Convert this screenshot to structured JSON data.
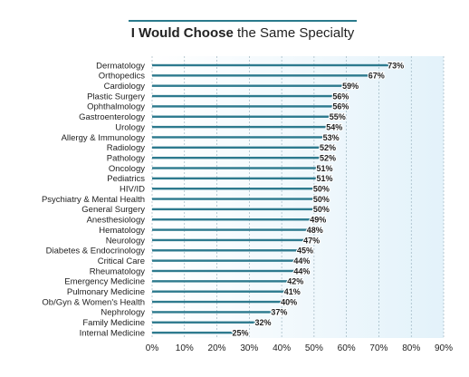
{
  "chart_data": {
    "type": "bar",
    "orientation": "horizontal",
    "title_bold": "I Would Choose",
    "title_rest": " the Same Specialty",
    "categories": [
      "Dermatology",
      "Orthopedics",
      "Cardiology",
      "Plastic Surgery",
      "Ophthalmology",
      "Gastroenterology",
      "Urology",
      "Allergy & Immunology",
      "Radiology",
      "Pathology",
      "Oncology",
      "Pediatrics",
      "HIV/ID",
      "Psychiatry & Mental Health",
      "General Surgery",
      "Anesthesiology",
      "Hematology",
      "Neurology",
      "Diabetes & Endocrinology",
      "Critical Care",
      "Rheumatology",
      "Emergency Medicine",
      "Pulmonary Medicine",
      "Ob/Gyn & Women's Health",
      "Nephrology",
      "Family Medicine",
      "Internal Medicine"
    ],
    "values": [
      73,
      67,
      59,
      56,
      56,
      55,
      54,
      53,
      52,
      52,
      51,
      51,
      50,
      50,
      50,
      49,
      48,
      47,
      45,
      44,
      44,
      42,
      41,
      40,
      37,
      32,
      25
    ],
    "value_labels": [
      "73%",
      "67%",
      "59%",
      "56%",
      "56%",
      "55%",
      "54%",
      "53%",
      "52%",
      "52%",
      "51%",
      "51%",
      "50%",
      "50%",
      "50%",
      "49%",
      "48%",
      "47%",
      "45%",
      "44%",
      "44%",
      "42%",
      "41%",
      "40%",
      "37%",
      "32%",
      "25%"
    ],
    "xlim": [
      0,
      90
    ],
    "xticks": [
      0,
      10,
      20,
      30,
      40,
      50,
      60,
      70,
      80,
      90
    ],
    "xtick_labels": [
      "0%",
      "10%",
      "20%",
      "30%",
      "40%",
      "50%",
      "60%",
      "70%",
      "80%",
      "90%"
    ],
    "grid": true,
    "colors": {
      "title_rule": "#2a7a8c",
      "bar": "#2d7a8e",
      "plot_bg_light": "#ffffff",
      "plot_bg_dark": "#e3f2fa",
      "grid": "#8fa9b6",
      "text": "#222222"
    }
  }
}
